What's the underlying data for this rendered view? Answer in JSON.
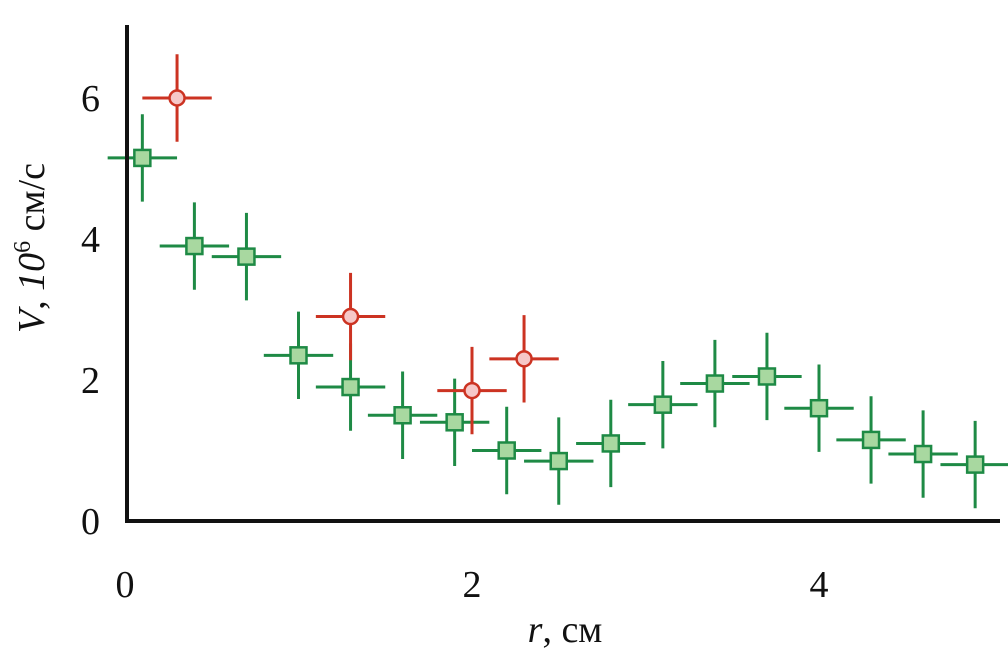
{
  "chart_data": {
    "type": "scatter",
    "title": "",
    "xlabel": {
      "var": "r",
      "unit": ", см"
    },
    "ylabel": {
      "var": "V",
      "sep": ", ",
      "scale": "10",
      "exp": "6",
      "unit": " см/с"
    },
    "xlim": [
      0,
      5
    ],
    "ylim": [
      0,
      7
    ],
    "xticks": [
      0,
      2,
      4
    ],
    "yticks": [
      0,
      2,
      4,
      6
    ],
    "grid": false,
    "legend": "none",
    "colors": {
      "green_edge": "#1e8a45",
      "green_fill": "#a8d8a0",
      "red_edge": "#cc3322",
      "red_fill": "#f6c8c8",
      "axis": "#111111"
    },
    "series": [
      {
        "marker": "square",
        "edge": "#1e8a45",
        "fill": "#a8d8a0",
        "points": [
          {
            "x": 0.1,
            "y": 5.15,
            "xerr": 0.2,
            "yerr": 0.62
          },
          {
            "x": 0.4,
            "y": 3.9,
            "xerr": 0.2,
            "yerr": 0.62
          },
          {
            "x": 0.7,
            "y": 3.75,
            "xerr": 0.2,
            "yerr": 0.62
          },
          {
            "x": 1.0,
            "y": 2.35,
            "xerr": 0.2,
            "yerr": 0.62
          },
          {
            "x": 1.3,
            "y": 1.9,
            "xerr": 0.2,
            "yerr": 0.62
          },
          {
            "x": 1.6,
            "y": 1.5,
            "xerr": 0.2,
            "yerr": 0.62
          },
          {
            "x": 1.9,
            "y": 1.4,
            "xerr": 0.2,
            "yerr": 0.62
          },
          {
            "x": 2.2,
            "y": 1.0,
            "xerr": 0.2,
            "yerr": 0.62
          },
          {
            "x": 2.5,
            "y": 0.85,
            "xerr": 0.2,
            "yerr": 0.62
          },
          {
            "x": 2.8,
            "y": 1.1,
            "xerr": 0.2,
            "yerr": 0.62
          },
          {
            "x": 3.1,
            "y": 1.65,
            "xerr": 0.2,
            "yerr": 0.62
          },
          {
            "x": 3.4,
            "y": 1.95,
            "xerr": 0.2,
            "yerr": 0.62
          },
          {
            "x": 3.7,
            "y": 2.05,
            "xerr": 0.2,
            "yerr": 0.62
          },
          {
            "x": 4.0,
            "y": 1.6,
            "xerr": 0.2,
            "yerr": 0.62
          },
          {
            "x": 4.3,
            "y": 1.15,
            "xerr": 0.2,
            "yerr": 0.62
          },
          {
            "x": 4.6,
            "y": 0.95,
            "xerr": 0.2,
            "yerr": 0.62
          },
          {
            "x": 4.9,
            "y": 0.8,
            "xerr": 0.2,
            "yerr": 0.62
          }
        ]
      },
      {
        "marker": "circle",
        "edge": "#cc3322",
        "fill": "#f6c8c8",
        "points": [
          {
            "x": 0.3,
            "y": 6.0,
            "xerr": 0.2,
            "yerr": 0.62
          },
          {
            "x": 1.3,
            "y": 2.9,
            "xerr": 0.2,
            "yerr": 0.62
          },
          {
            "x": 2.0,
            "y": 1.85,
            "xerr": 0.2,
            "yerr": 0.62
          },
          {
            "x": 2.3,
            "y": 2.3,
            "xerr": 0.2,
            "yerr": 0.62
          }
        ]
      }
    ]
  }
}
